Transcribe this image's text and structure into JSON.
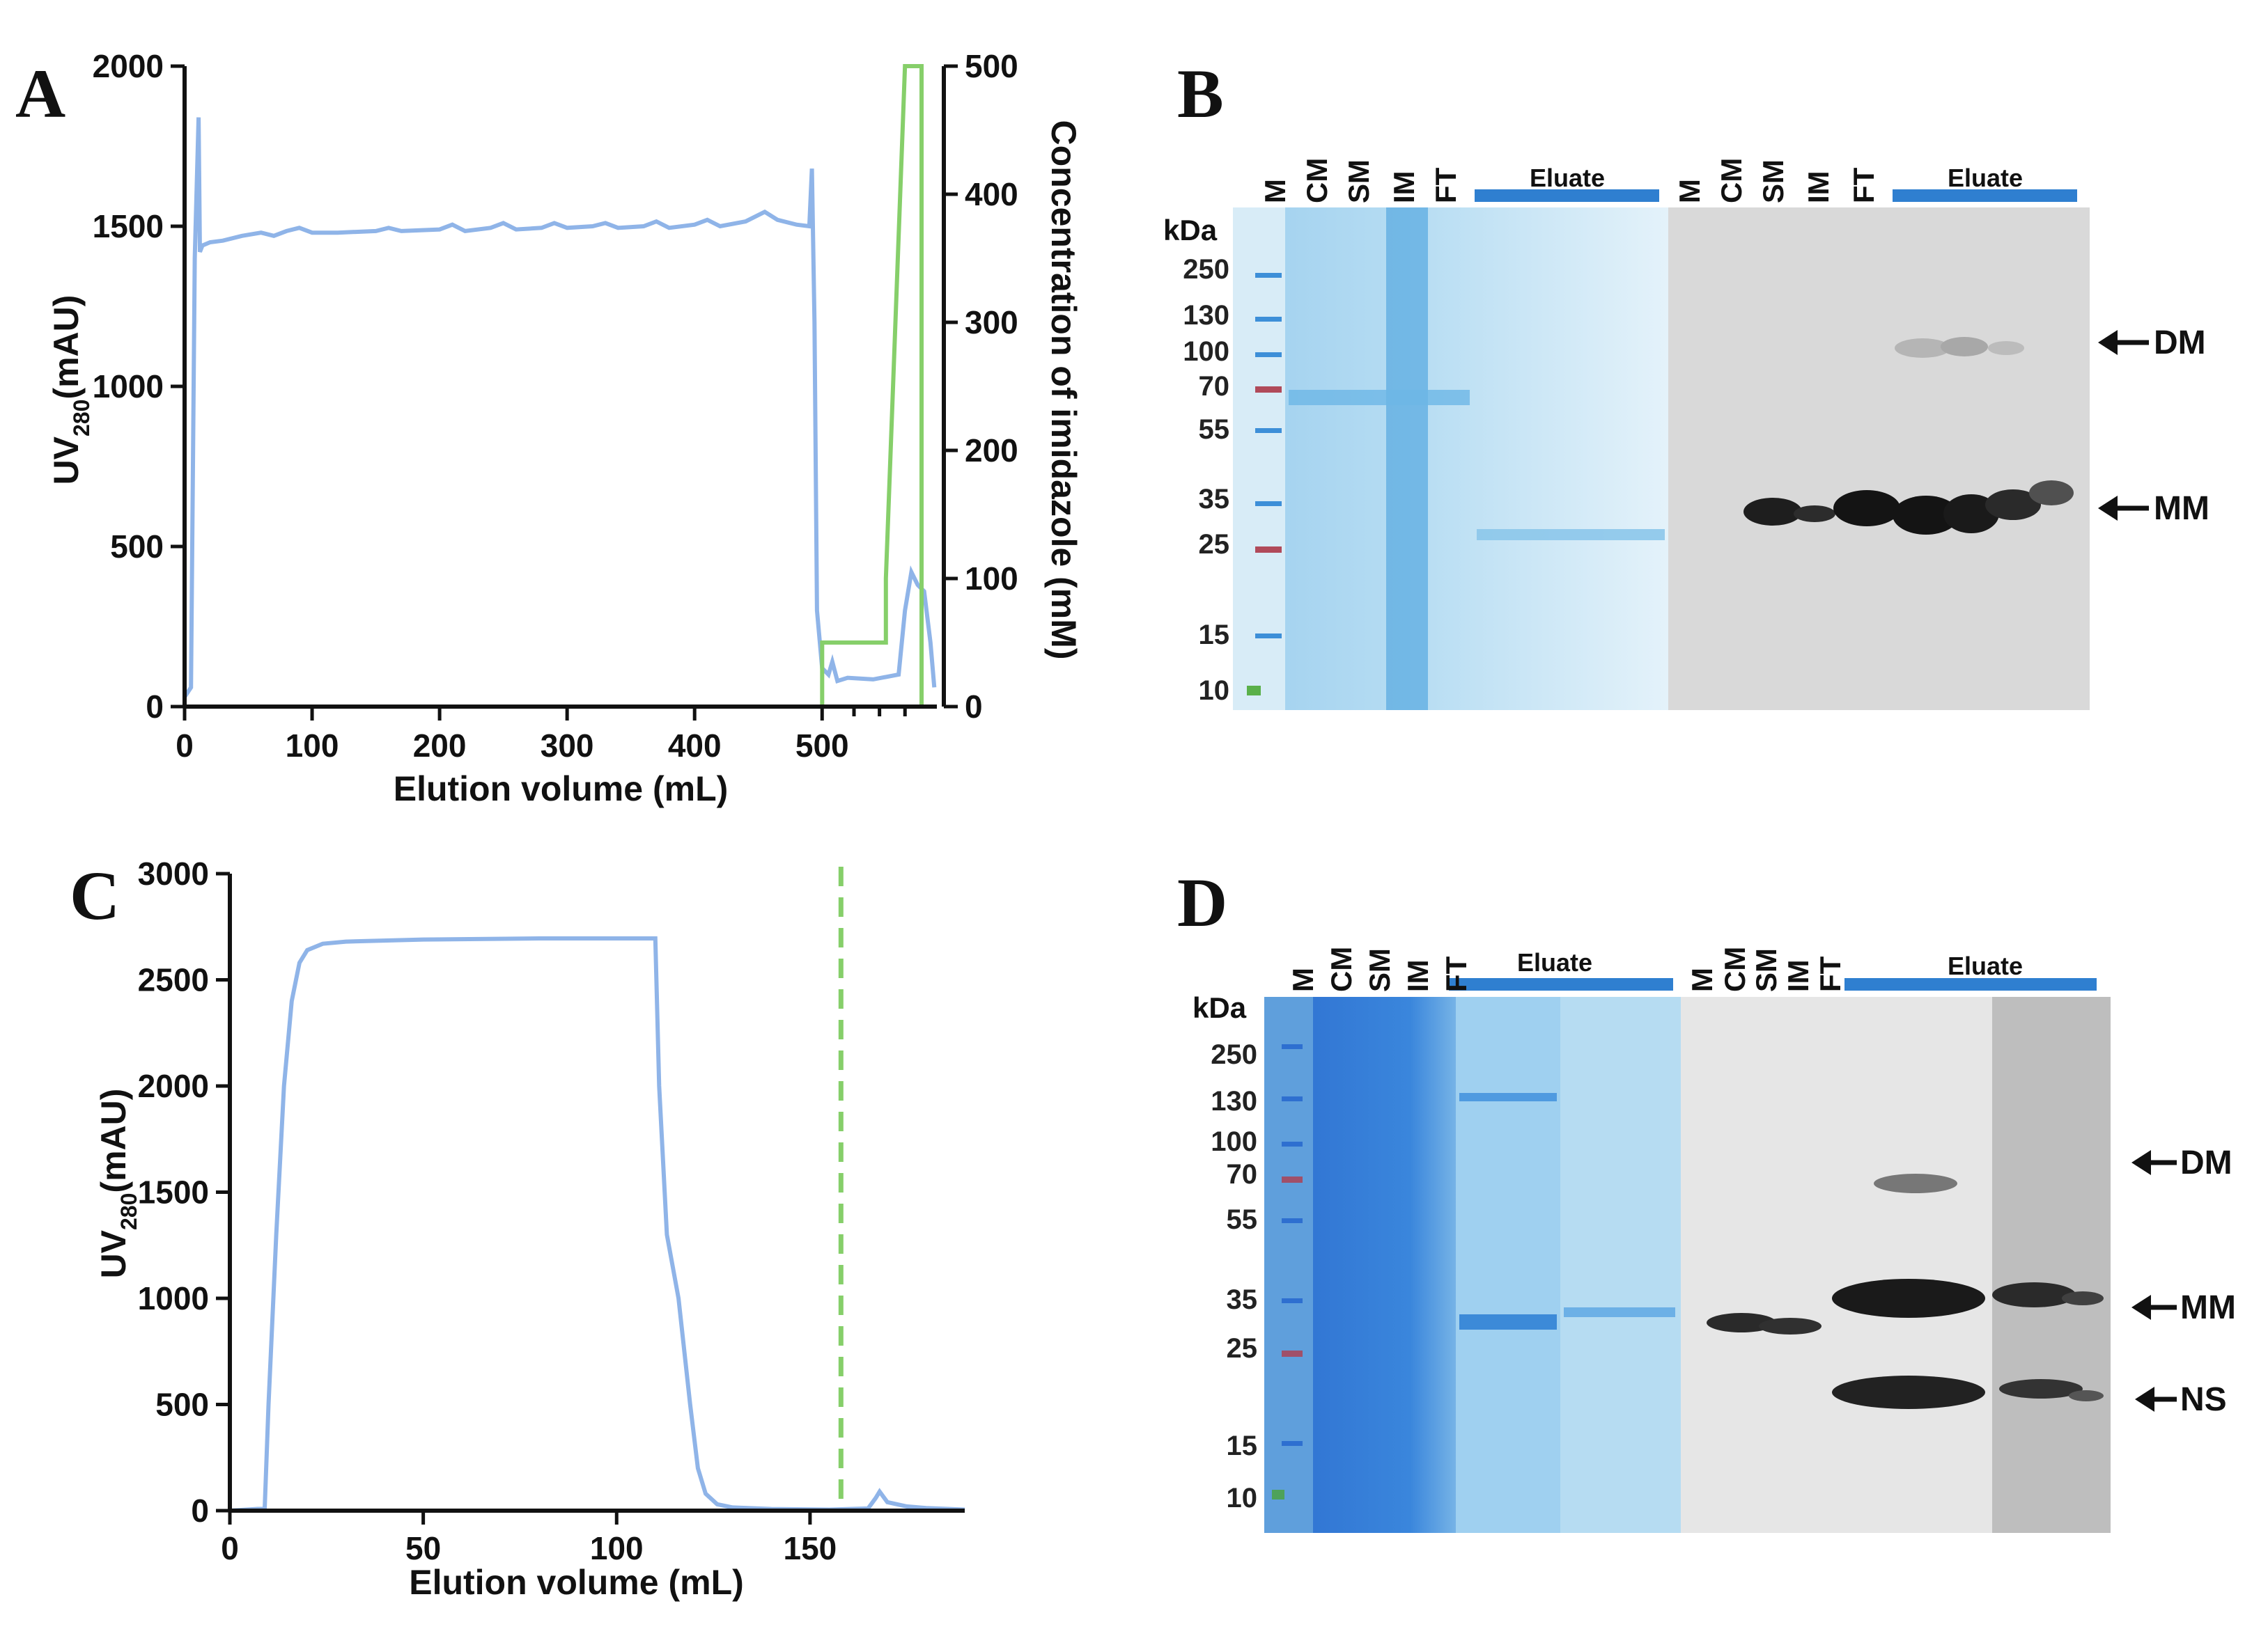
{
  "panels": {
    "a": {
      "label": "A"
    },
    "b": {
      "label": "B"
    },
    "c": {
      "label": "C"
    },
    "d": {
      "label": "D"
    }
  },
  "colors": {
    "uv": "#8fb4e8",
    "imidazole": "#86cf6a",
    "gel_blue": "#2f7fd0",
    "blot_bg": "#d9d9d9"
  },
  "chart_data": [
    {
      "type": "line",
      "panel": "A",
      "xlabel": "Elution volume (mL)",
      "ylabel": "UV280 (mAU)",
      "ylabel_main": "UV",
      "ylabel_sub": "280",
      "ylabel_unit": "(mAU)",
      "y2label": "Concentration of imidazole (mM)",
      "xlim": [
        0,
        590
      ],
      "ylim": [
        0,
        2000
      ],
      "y2lim": [
        0,
        500
      ],
      "xticks": [
        0,
        100,
        200,
        300,
        400,
        500
      ],
      "yticks": [
        0,
        500,
        1000,
        1500,
        2000
      ],
      "y2ticks": [
        0,
        100,
        200,
        300,
        400,
        500
      ],
      "series": [
        {
          "name": "UV280",
          "axis": "left",
          "x": [
            0,
            5,
            8,
            11,
            12,
            14,
            20,
            30,
            45,
            60,
            70,
            80,
            90,
            100,
            120,
            150,
            160,
            170,
            200,
            210,
            220,
            240,
            250,
            260,
            280,
            290,
            300,
            320,
            330,
            340,
            360,
            370,
            380,
            400,
            410,
            420,
            440,
            455,
            465,
            480,
            490,
            492,
            494,
            496,
            500,
            505,
            508,
            512,
            520,
            540,
            560,
            565,
            570,
            575,
            580,
            585,
            588
          ],
          "y": [
            30,
            60,
            1400,
            1840,
            1420,
            1440,
            1450,
            1455,
            1470,
            1480,
            1470,
            1485,
            1495,
            1480,
            1480,
            1485,
            1495,
            1485,
            1490,
            1505,
            1485,
            1495,
            1510,
            1490,
            1495,
            1510,
            1495,
            1500,
            1510,
            1495,
            1500,
            1515,
            1495,
            1505,
            1520,
            1500,
            1515,
            1545,
            1520,
            1505,
            1500,
            1680,
            1200,
            300,
            120,
            100,
            140,
            80,
            90,
            85,
            100,
            300,
            420,
            380,
            360,
            200,
            60
          ]
        },
        {
          "name": "Imidazole",
          "axis": "right",
          "x": [
            0,
            500,
            500,
            550,
            550,
            565,
            578,
            578,
            590
          ],
          "y": [
            0,
            0,
            50,
            50,
            100,
            500,
            500,
            0,
            0
          ]
        }
      ]
    },
    {
      "type": "line",
      "panel": "C",
      "xlabel": "Elution volume (mL)",
      "ylabel": "UV280 (mAU)",
      "ylabel_main": "UV",
      "ylabel_sub": "280",
      "ylabel_unit": "(mAU)",
      "xlim": [
        0,
        190
      ],
      "ylim": [
        0,
        3000
      ],
      "xticks": [
        0,
        50,
        100,
        150
      ],
      "yticks": [
        0,
        500,
        1000,
        1500,
        2000,
        2500,
        3000
      ],
      "vline_x": 158,
      "series": [
        {
          "name": "UV280",
          "x": [
            0,
            9,
            10,
            12,
            14,
            16,
            18,
            20,
            24,
            30,
            50,
            80,
            110,
            111,
            113,
            116,
            119,
            121,
            123,
            126,
            130,
            140,
            155,
            165,
            167,
            168,
            170,
            175,
            180,
            190
          ],
          "y": [
            0,
            10,
            500,
            1300,
            2000,
            2400,
            2580,
            2640,
            2670,
            2680,
            2690,
            2695,
            2695,
            2000,
            1300,
            1000,
            500,
            200,
            80,
            30,
            15,
            8,
            5,
            10,
            60,
            90,
            40,
            20,
            12,
            5
          ]
        }
      ]
    }
  ],
  "gel_b": {
    "lanes_left": [
      "M",
      "CM",
      "SM",
      "IM",
      "FT"
    ],
    "lanes_right": [
      "M",
      "CM",
      "SM",
      "IM",
      "FT"
    ],
    "eluate_label": "Eluate",
    "kda": "kDa",
    "markers": [
      "250",
      "130",
      "100",
      "70",
      "55",
      "35",
      "25",
      "15",
      "10"
    ],
    "bands": [
      "DM",
      "MM"
    ]
  },
  "gel_d": {
    "lanes_left": [
      "M",
      "CM",
      "SM",
      "IM",
      "FT"
    ],
    "lanes_right": [
      "M",
      "CM",
      "SM",
      "IM",
      "FT"
    ],
    "eluate_label": "Eluate",
    "kda": "kDa",
    "markers": [
      "250",
      "130",
      "100",
      "70",
      "55",
      "35",
      "25",
      "15",
      "10"
    ],
    "bands": [
      "DM",
      "MM",
      "NS"
    ]
  }
}
